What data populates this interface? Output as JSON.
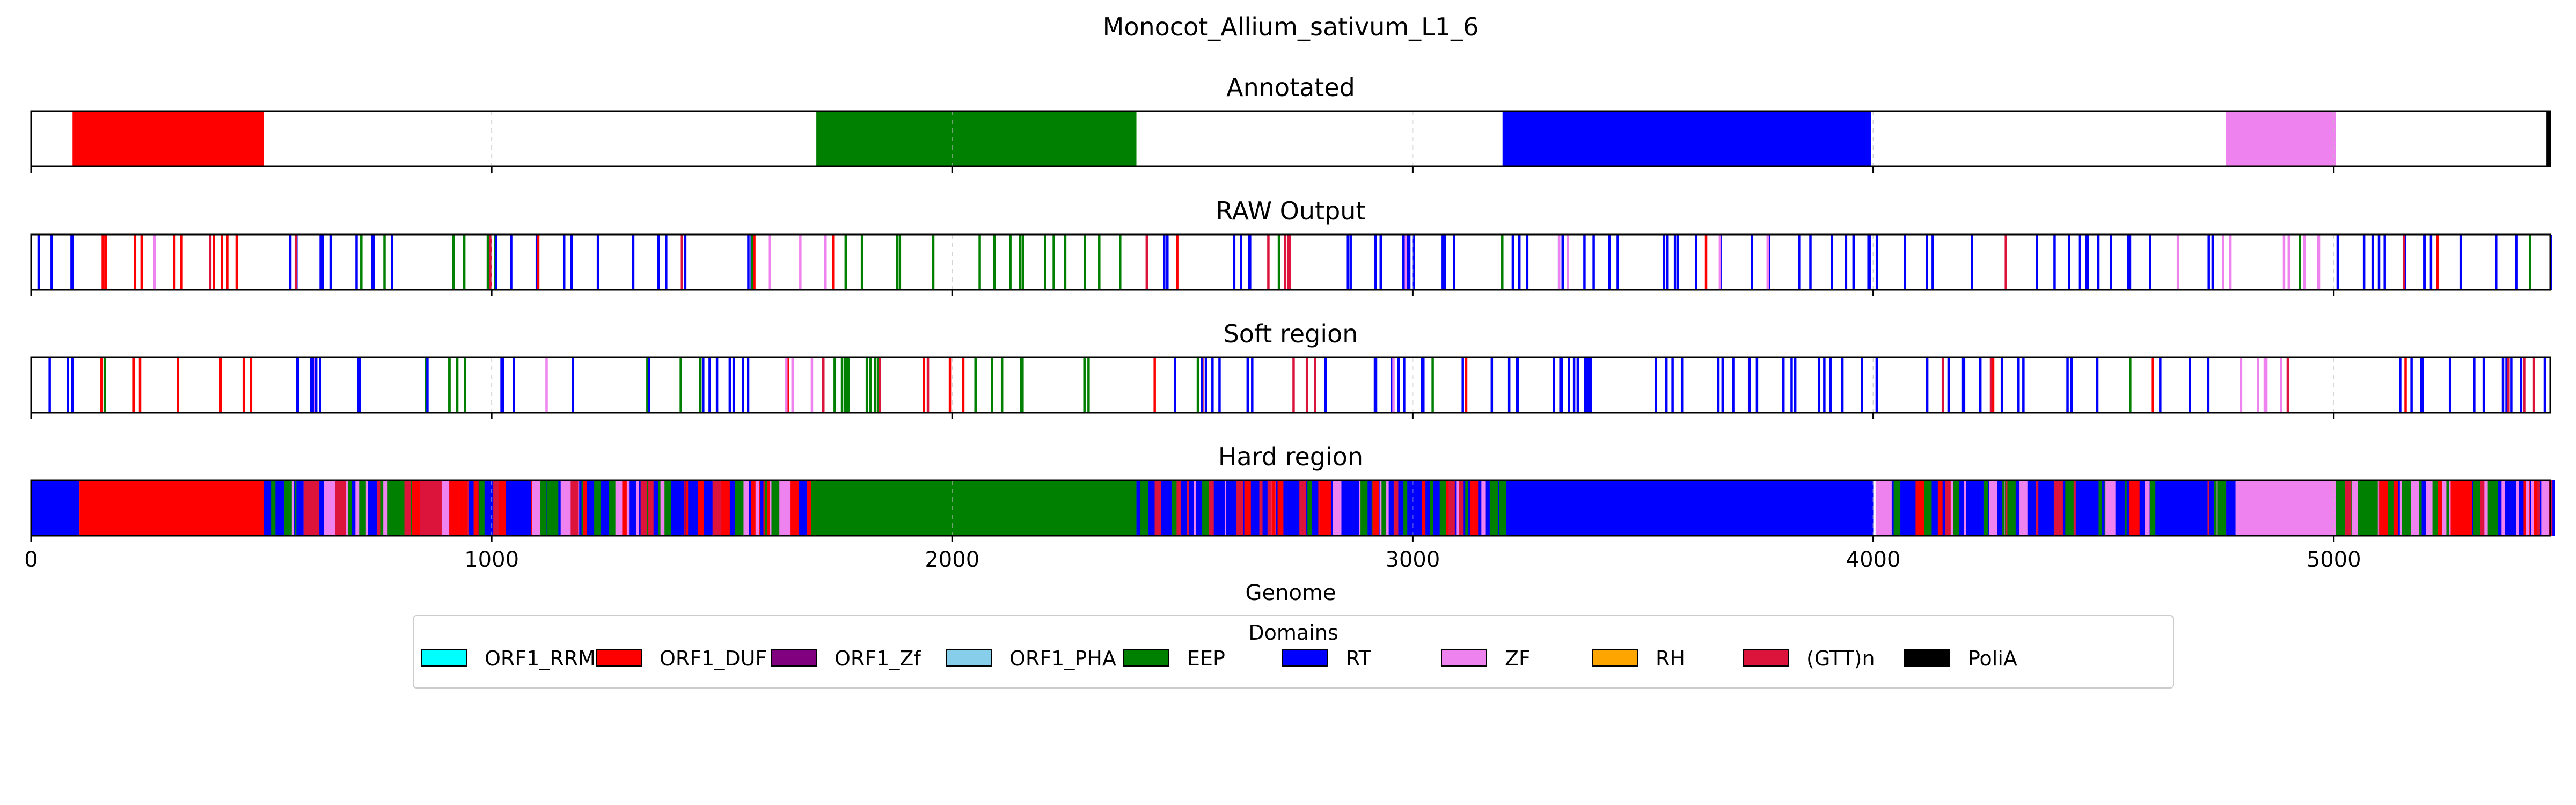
{
  "chart_data": {
    "type": "genome-track",
    "title": "Monocot_Allium_sativum_L1_6",
    "xlabel": "Genome",
    "xlim": [
      0,
      5470
    ],
    "xticks": [
      0,
      1000,
      2000,
      3000,
      4000,
      5000
    ],
    "xtick_labels": [
      "0",
      "1000",
      "2000",
      "3000",
      "4000",
      "5000"
    ],
    "grid": "dashed vertical lines at x ticks",
    "legend": {
      "title": "Domains",
      "placement": "below",
      "entries": [
        {
          "name": "ORF1_RRM",
          "color": "#00ffff"
        },
        {
          "name": "ORF1_DUF",
          "color": "#ff0000"
        },
        {
          "name": "ORF1_Zf",
          "color": "#800080"
        },
        {
          "name": "ORF1_PHA",
          "color": "#87ceeb"
        },
        {
          "name": "EEP",
          "color": "#008000"
        },
        {
          "name": "RT",
          "color": "#0000ff"
        },
        {
          "name": "ZF",
          "color": "#ee82ee"
        },
        {
          "name": "RH",
          "color": "#ffa500"
        },
        {
          "name": "(GTT)n",
          "color": "#dc143c"
        },
        {
          "name": "PoliA",
          "color": "#000000"
        }
      ]
    },
    "tracks": [
      {
        "name": "Annotated",
        "segments": [
          {
            "domain": "ORF1_DUF",
            "start": 90,
            "end": 505
          },
          {
            "domain": "EEP",
            "start": 1705,
            "end": 2400
          },
          {
            "domain": "RT",
            "start": 3195,
            "end": 3995
          },
          {
            "domain": "ZF",
            "start": 4765,
            "end": 5005
          },
          {
            "domain": "PoliA",
            "start": 5462,
            "end": 5470
          }
        ]
      },
      {
        "name": "RAW Output",
        "regions": [
          {
            "domain": "RT",
            "start": 0,
            "end": 100
          },
          {
            "domain": "ORF1_DUF",
            "start": 100,
            "end": 505
          },
          {
            "domain": "RT",
            "start": 505,
            "end": 900
          },
          {
            "domain": "EEP",
            "start": 900,
            "end": 1000
          },
          {
            "domain": "RT",
            "start": 1000,
            "end": 1600
          },
          {
            "domain": "ZF",
            "start": 1600,
            "end": 1700
          },
          {
            "domain": "EEP",
            "start": 1700,
            "end": 2400
          },
          {
            "domain": "RT",
            "start": 2400,
            "end": 2650
          },
          {
            "domain": "(GTT)n",
            "start": 2650,
            "end": 2800
          },
          {
            "domain": "RT",
            "start": 2800,
            "end": 3200
          },
          {
            "domain": "RT",
            "start": 3200,
            "end": 4000
          },
          {
            "domain": "RT",
            "start": 4000,
            "end": 4750
          },
          {
            "domain": "ZF",
            "start": 4750,
            "end": 5000
          },
          {
            "domain": "RT",
            "start": 5000,
            "end": 5470
          }
        ]
      },
      {
        "name": "Soft region",
        "regions": [
          {
            "domain": "RT",
            "start": 0,
            "end": 100
          },
          {
            "domain": "ORF1_DUF",
            "start": 100,
            "end": 505
          },
          {
            "domain": "RT",
            "start": 505,
            "end": 900
          },
          {
            "domain": "EEP",
            "start": 900,
            "end": 1000
          },
          {
            "domain": "RT",
            "start": 1000,
            "end": 1600
          },
          {
            "domain": "ZF",
            "start": 1600,
            "end": 1700
          },
          {
            "domain": "EEP",
            "start": 1700,
            "end": 2400
          },
          {
            "domain": "RT",
            "start": 2400,
            "end": 2650
          },
          {
            "domain": "(GTT)n",
            "start": 2650,
            "end": 2800
          },
          {
            "domain": "RT",
            "start": 2800,
            "end": 3200
          },
          {
            "domain": "RT",
            "start": 3200,
            "end": 4000
          },
          {
            "domain": "RT",
            "start": 4000,
            "end": 4750
          },
          {
            "domain": "ZF",
            "start": 4750,
            "end": 5000
          },
          {
            "domain": "RT",
            "start": 5000,
            "end": 5470
          }
        ]
      },
      {
        "name": "Hard region",
        "segments": [
          {
            "domain": "RT",
            "start": 0,
            "end": 105
          },
          {
            "domain": "ORF1_DUF",
            "start": 105,
            "end": 505
          },
          {
            "domain": "RT",
            "start": 505,
            "end": 640
          },
          {
            "domain": "ZF",
            "start": 640,
            "end": 690
          },
          {
            "domain": "EEP",
            "start": 690,
            "end": 830
          },
          {
            "domain": "(GTT)n",
            "start": 830,
            "end": 910
          },
          {
            "domain": "RT",
            "start": 910,
            "end": 1150
          },
          {
            "domain": "ZF",
            "start": 1150,
            "end": 1190
          },
          {
            "domain": "RT",
            "start": 1190,
            "end": 1600
          },
          {
            "domain": "ZF",
            "start": 1600,
            "end": 1690
          },
          {
            "domain": "EEP",
            "start": 1690,
            "end": 2400
          },
          {
            "domain": "RT",
            "start": 2400,
            "end": 3190
          },
          {
            "domain": "RT",
            "start": 3190,
            "end": 4000
          },
          {
            "domain": "ZF",
            "start": 4005,
            "end": 4040
          },
          {
            "domain": "RT",
            "start": 4040,
            "end": 4775
          },
          {
            "domain": "ZF",
            "start": 4775,
            "end": 5005
          },
          {
            "domain": "EEP",
            "start": 5005,
            "end": 5200
          },
          {
            "domain": "ORF1_DUF",
            "start": 5200,
            "end": 5300
          },
          {
            "domain": "RT",
            "start": 5300,
            "end": 5470
          }
        ]
      }
    ]
  }
}
